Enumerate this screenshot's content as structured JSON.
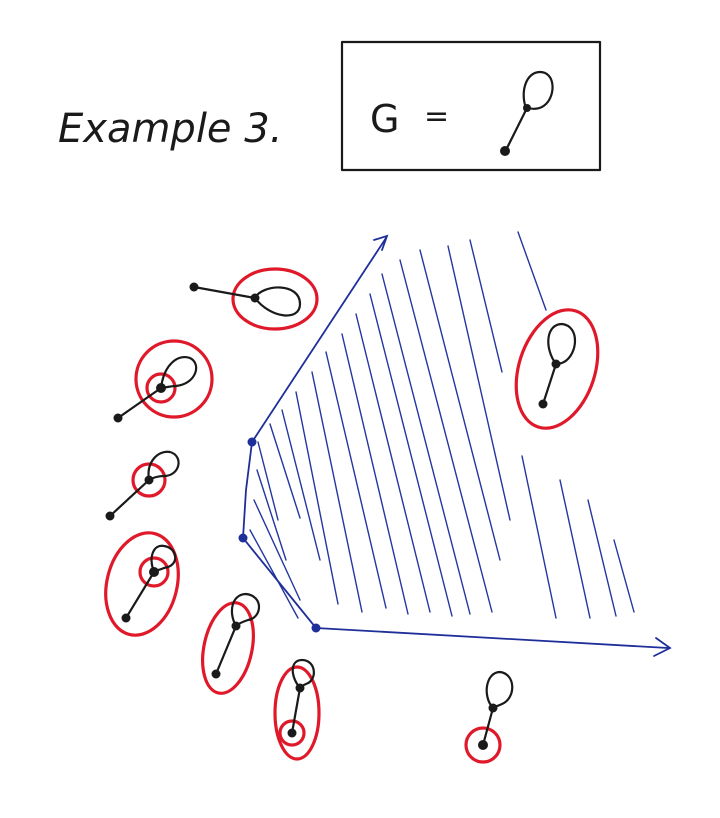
{
  "title": "Example 3.",
  "graph_def": {
    "lhs": "G",
    "eq": "="
  },
  "colors": {
    "ink": "#1a1a1a",
    "blue": "#1f2f9a",
    "red": "#e0192a"
  }
}
